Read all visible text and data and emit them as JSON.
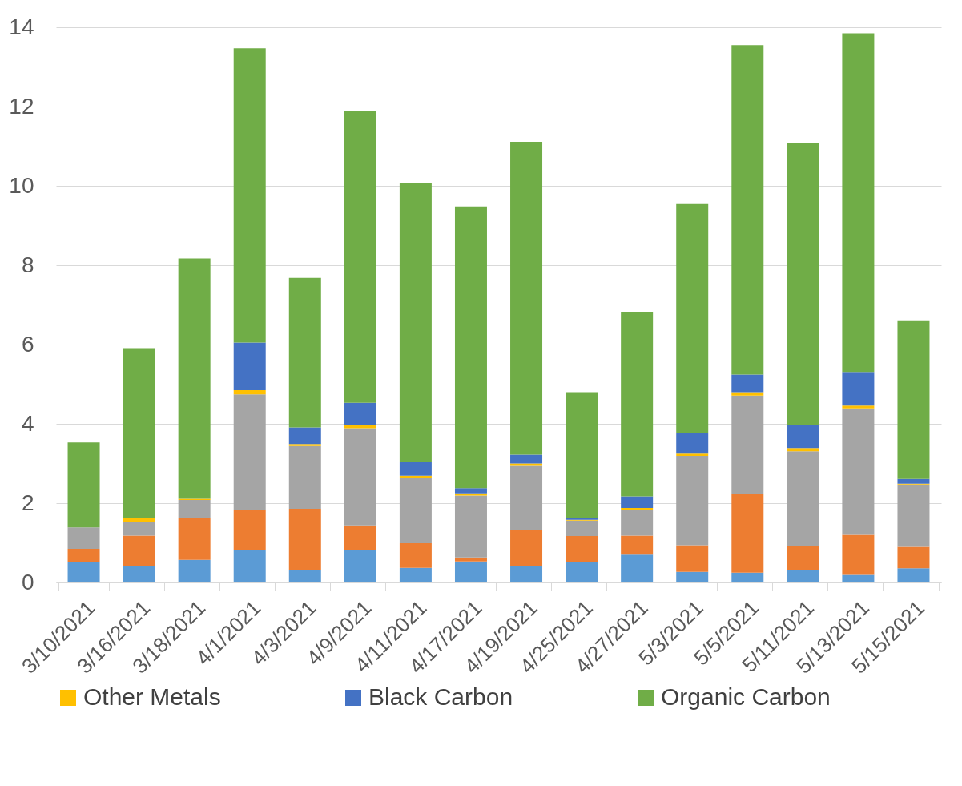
{
  "chart_data": {
    "type": "bar",
    "stacked": true,
    "grid": "y",
    "legend": "bottom",
    "categories": [
      "3/10/2021",
      "3/16/2021",
      "3/18/2021",
      "4/1/2021",
      "4/3/2021",
      "4/9/2021",
      "4/11/2021",
      "4/17/2021",
      "4/19/2021",
      "4/25/2021",
      "4/27/2021",
      "5/3/2021",
      "5/5/2021",
      "5/11/2021",
      "5/13/2021",
      "5/15/2021"
    ],
    "ylim": [
      0,
      14
    ],
    "yticks": [
      0,
      2,
      4,
      6,
      8,
      10,
      12,
      14
    ],
    "series": [
      {
        "color": "#5b9bd5",
        "values": [
          0.51,
          0.42,
          0.57,
          0.83,
          0.32,
          0.81,
          0.37,
          0.53,
          0.42,
          0.51,
          0.7,
          0.27,
          0.25,
          0.32,
          0.19,
          0.36
        ]
      },
      {
        "color": "#ed7d31",
        "values": [
          0.34,
          0.76,
          1.05,
          1.01,
          1.54,
          0.63,
          0.62,
          0.1,
          0.91,
          0.66,
          0.48,
          0.67,
          1.97,
          0.6,
          1.01,
          0.54
        ]
      },
      {
        "color": "#a5a5a5",
        "values": [
          0.54,
          0.35,
          0.46,
          2.9,
          1.58,
          2.45,
          1.64,
          1.56,
          1.63,
          0.39,
          0.66,
          2.25,
          2.49,
          2.39,
          3.19,
          1.57
        ]
      },
      {
        "name": "Other Metals",
        "color": "#ffc000",
        "values": [
          0,
          0.09,
          0.03,
          0.11,
          0.05,
          0.07,
          0.06,
          0.06,
          0.04,
          0.02,
          0.04,
          0.06,
          0.09,
          0.08,
          0.07,
          0.02
        ]
      },
      {
        "name": "Black Carbon",
        "color": "#4472c4",
        "values": [
          0,
          0,
          0,
          1.2,
          0.42,
          0.57,
          0.36,
          0.13,
          0.22,
          0.05,
          0.29,
          0.52,
          0.44,
          0.59,
          0.85,
          0.12
        ]
      },
      {
        "name": "Organic Carbon",
        "color": "#70ad47",
        "values": [
          2.14,
          4.29,
          6.06,
          7.42,
          3.77,
          7.35,
          7.03,
          7.1,
          7.89,
          3.17,
          4.66,
          5.79,
          8.31,
          7.09,
          8.54,
          3.98
        ]
      }
    ]
  }
}
